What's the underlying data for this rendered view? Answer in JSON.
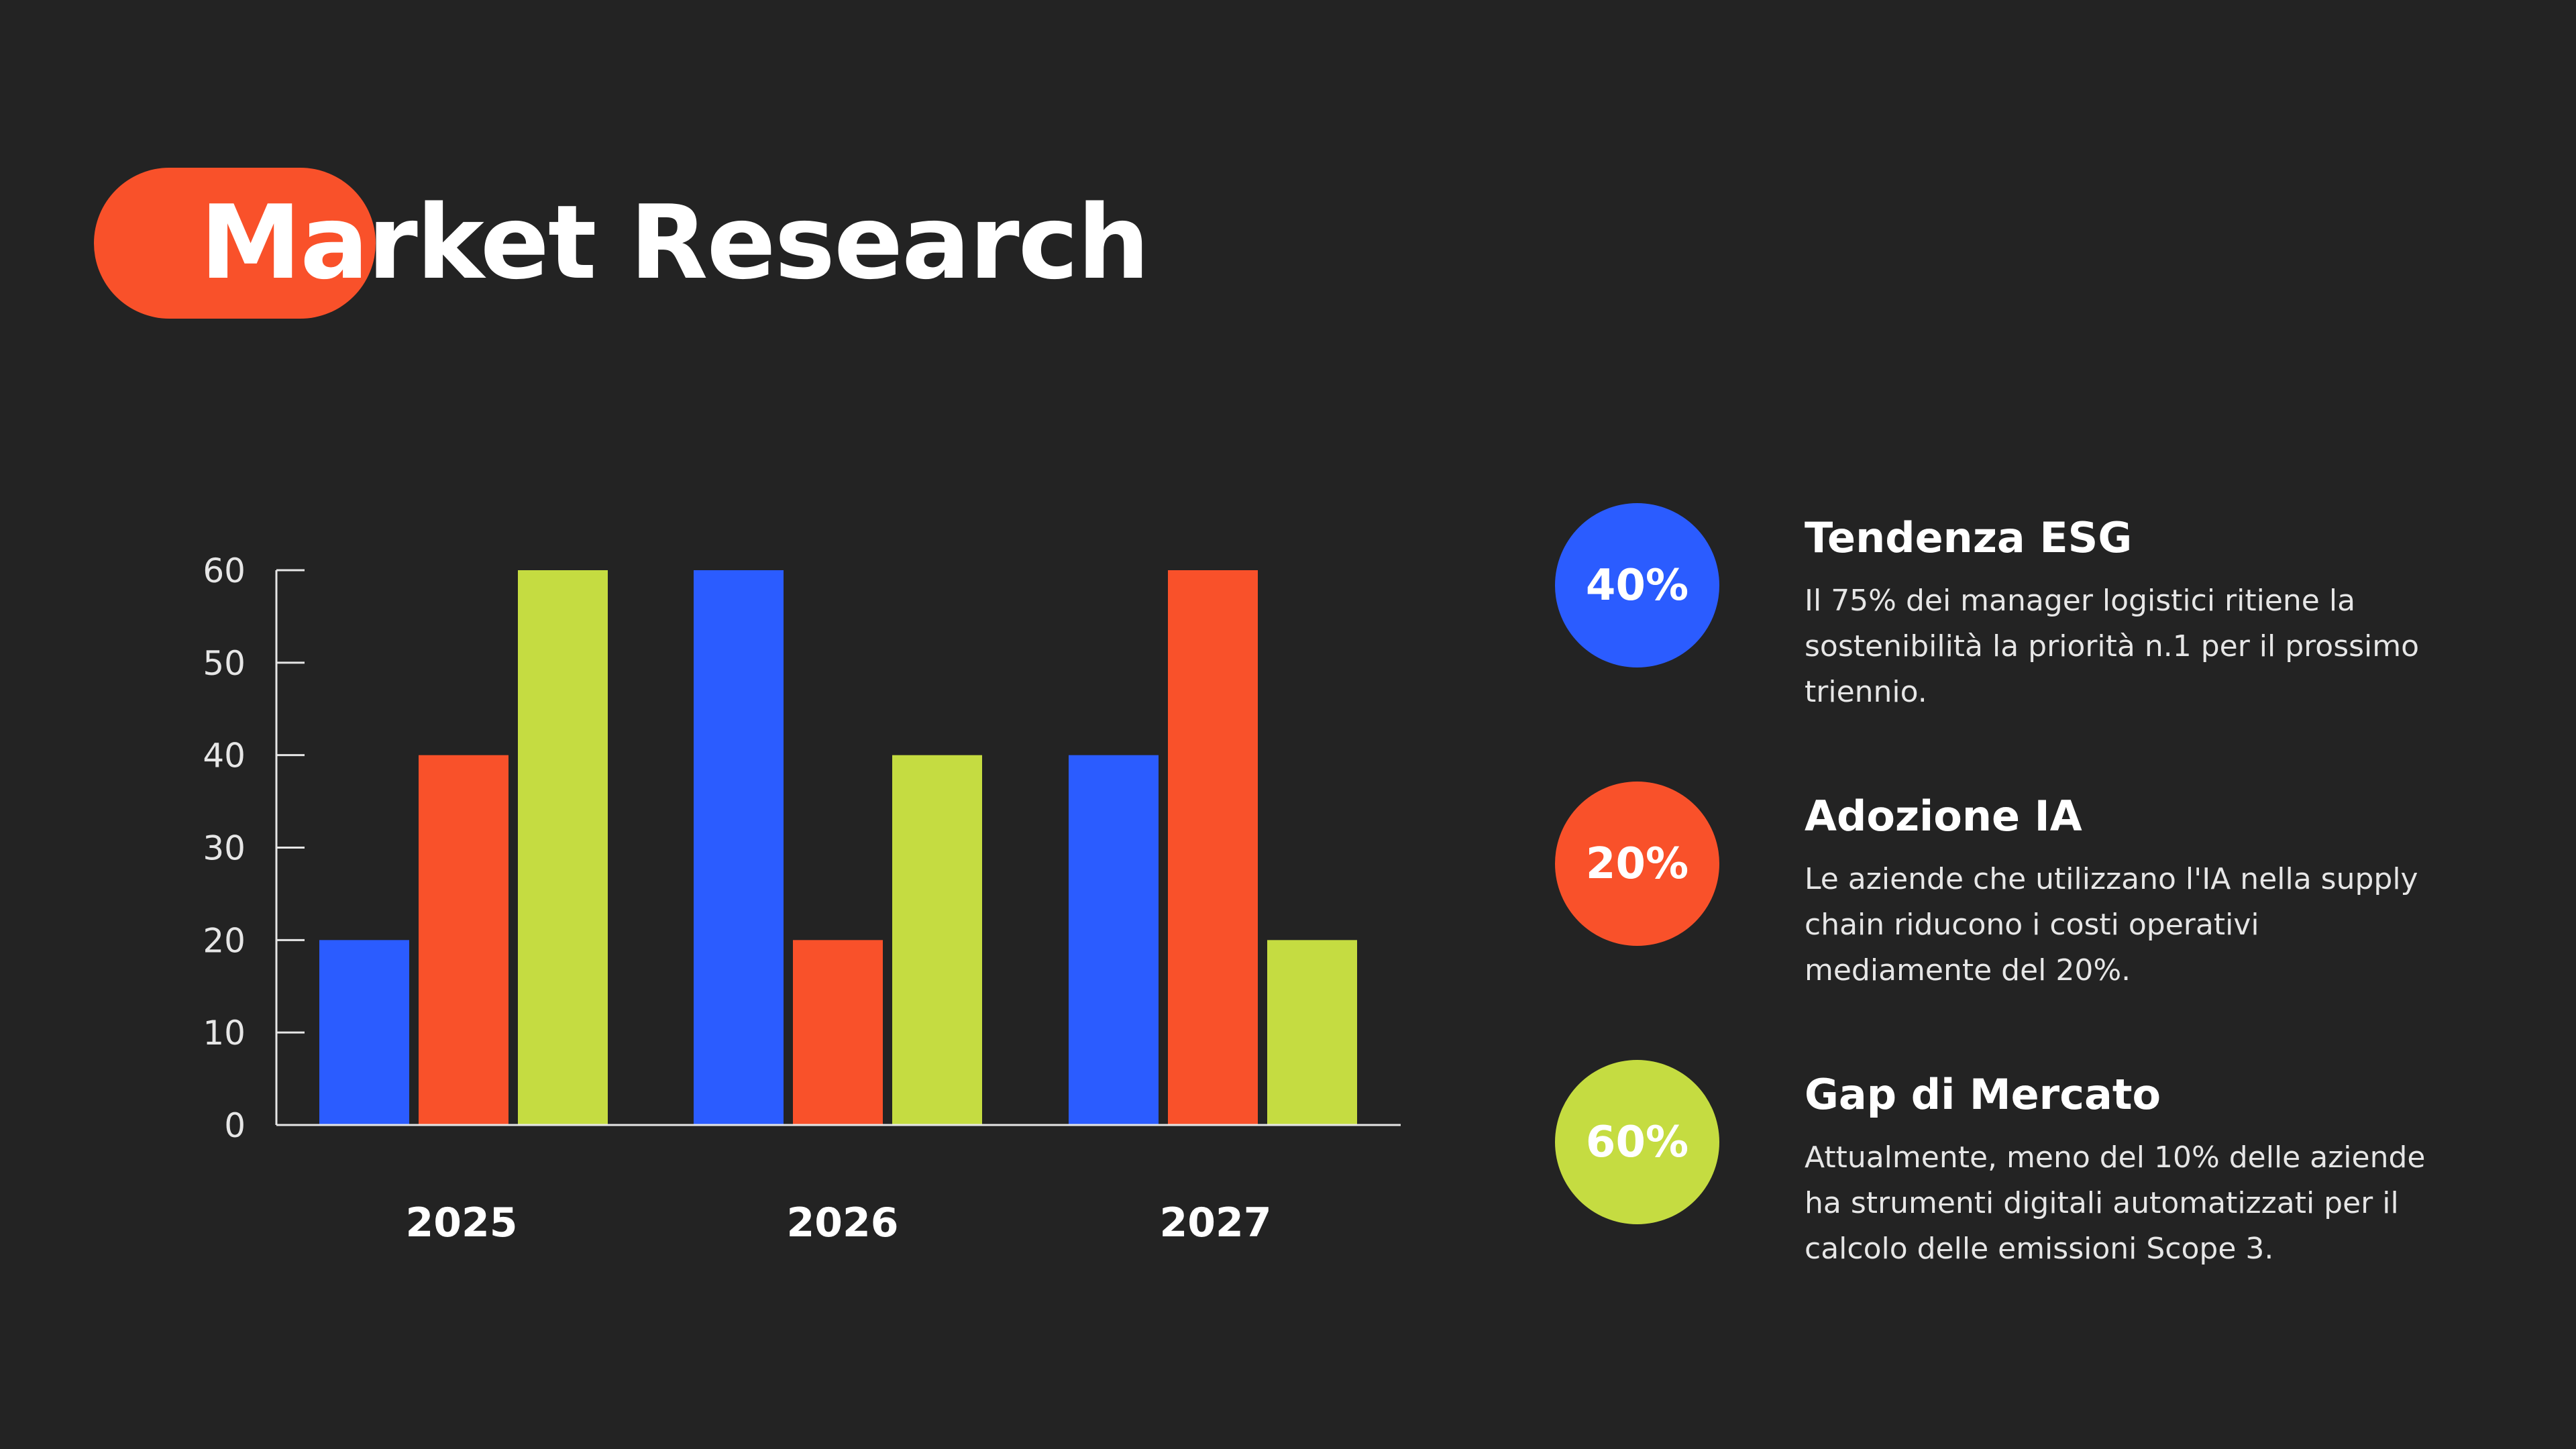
{
  "colors": {
    "background": "#232323",
    "blue": "#2b5cff",
    "orange": "#f9512a",
    "green": "#c5dc41",
    "axis": "#e6e6e6",
    "text": "#ffffff"
  },
  "header": {
    "title": "Market Research"
  },
  "chart_data": {
    "type": "bar",
    "categories": [
      "2025",
      "2026",
      "2027"
    ],
    "series": [
      {
        "values": [
          20,
          60,
          40
        ],
        "color": "#2b5cff"
      },
      {
        "values": [
          40,
          20,
          60
        ],
        "color": "#f9512a"
      },
      {
        "values": [
          60,
          40,
          20
        ],
        "color": "#c5dc41"
      }
    ],
    "yticks": [
      0,
      10,
      20,
      30,
      40,
      50,
      60
    ],
    "ylim": [
      0,
      60
    ],
    "grid": false,
    "legend": "none",
    "title": "",
    "xlabel": "",
    "ylabel": ""
  },
  "stats": [
    {
      "value": "40%",
      "color": "#2b5cff",
      "heading": "Tendenza ESG",
      "description": "Il 75% dei manager logistici ritiene la sostenibilità la priorità n.1 per il prossimo triennio."
    },
    {
      "value": "20%",
      "color": "#f9512a",
      "heading": "Adozione IA",
      "description": "Le aziende che utilizzano l'IA nella supply chain riducono i costi operativi mediamente del 20%."
    },
    {
      "value": "60%",
      "color": "#c5dc41",
      "heading": "Gap di Mercato",
      "description": "Attualmente, meno del 10% delle aziende ha strumenti digitali automatizzati per il calcolo delle emissioni Scope 3."
    }
  ]
}
